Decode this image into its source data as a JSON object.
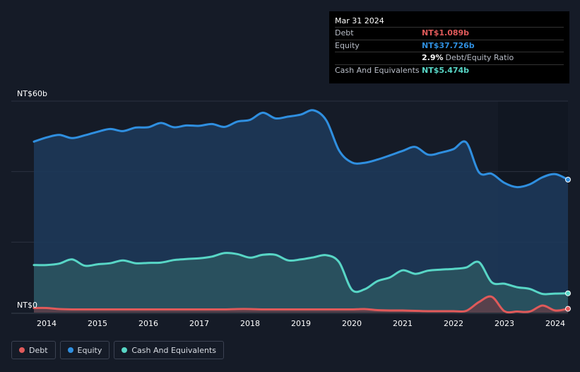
{
  "tooltip": {
    "date": "Mar 31 2024",
    "rows": [
      {
        "label": "Debt",
        "value": "NT$1.089b",
        "color": "#e05a5a"
      },
      {
        "label": "Equity",
        "value": "NT$37.726b",
        "color": "#2f8fe0"
      },
      {
        "label": "",
        "value": "2.9%",
        "suffix": "Debt/Equity Ratio",
        "color": "#ffffff"
      },
      {
        "label": "Cash And Equivalents",
        "value": "NT$5.474b",
        "color": "#58d6c6"
      }
    ]
  },
  "legend": [
    {
      "label": "Debt",
      "color": "#e05a5a"
    },
    {
      "label": "Equity",
      "color": "#2f8fe0"
    },
    {
      "label": "Cash And Equivalents",
      "color": "#58d6c6"
    }
  ],
  "chart_data": {
    "type": "area",
    "ylim": [
      0,
      60
    ],
    "xlim": [
      2013.6,
      2024.25
    ],
    "y_tick_labels": [
      {
        "value": 60,
        "label": "NT$60b"
      },
      {
        "value": 0,
        "label": "NT$0"
      }
    ],
    "x_ticks": [
      2014,
      2015,
      2016,
      2017,
      2018,
      2019,
      2020,
      2021,
      2022,
      2023,
      2024
    ],
    "grid": true,
    "series": [
      {
        "name": "Equity",
        "color": "#2f8fe0",
        "points": [
          [
            2013.75,
            48.5
          ],
          [
            2014.0,
            49.7
          ],
          [
            2014.25,
            50.4
          ],
          [
            2014.5,
            49.5
          ],
          [
            2014.75,
            50.3
          ],
          [
            2015.0,
            51.3
          ],
          [
            2015.25,
            52.1
          ],
          [
            2015.5,
            51.5
          ],
          [
            2015.75,
            52.5
          ],
          [
            2016.0,
            52.6
          ],
          [
            2016.25,
            53.8
          ],
          [
            2016.5,
            52.6
          ],
          [
            2016.75,
            53.1
          ],
          [
            2017.0,
            53.0
          ],
          [
            2017.25,
            53.5
          ],
          [
            2017.5,
            52.7
          ],
          [
            2017.75,
            54.2
          ],
          [
            2018.0,
            54.7
          ],
          [
            2018.25,
            56.7
          ],
          [
            2018.5,
            55.1
          ],
          [
            2018.75,
            55.6
          ],
          [
            2019.0,
            56.2
          ],
          [
            2019.25,
            57.4
          ],
          [
            2019.5,
            54.5
          ],
          [
            2019.75,
            46.0
          ],
          [
            2020.0,
            42.6
          ],
          [
            2020.25,
            42.5
          ],
          [
            2020.5,
            43.4
          ],
          [
            2020.75,
            44.6
          ],
          [
            2021.0,
            45.9
          ],
          [
            2021.25,
            47.0
          ],
          [
            2021.5,
            44.8
          ],
          [
            2021.75,
            45.4
          ],
          [
            2022.0,
            46.4
          ],
          [
            2022.25,
            48.3
          ],
          [
            2022.5,
            39.8
          ],
          [
            2022.75,
            39.4
          ],
          [
            2023.0,
            36.8
          ],
          [
            2023.25,
            35.6
          ],
          [
            2023.5,
            36.4
          ],
          [
            2023.75,
            38.4
          ],
          [
            2024.0,
            39.3
          ],
          [
            2024.25,
            37.726
          ]
        ]
      },
      {
        "name": "Cash And Equivalents",
        "color": "#58d6c6",
        "points": [
          [
            2013.75,
            13.5
          ],
          [
            2014.0,
            13.5
          ],
          [
            2014.25,
            13.9
          ],
          [
            2014.5,
            15.1
          ],
          [
            2014.75,
            13.3
          ],
          [
            2015.0,
            13.7
          ],
          [
            2015.25,
            14.0
          ],
          [
            2015.5,
            14.8
          ],
          [
            2015.75,
            14.0
          ],
          [
            2016.0,
            14.1
          ],
          [
            2016.25,
            14.2
          ],
          [
            2016.5,
            14.9
          ],
          [
            2016.75,
            15.2
          ],
          [
            2017.0,
            15.4
          ],
          [
            2017.25,
            15.9
          ],
          [
            2017.5,
            16.9
          ],
          [
            2017.75,
            16.6
          ],
          [
            2018.0,
            15.6
          ],
          [
            2018.25,
            16.4
          ],
          [
            2018.5,
            16.4
          ],
          [
            2018.75,
            14.8
          ],
          [
            2019.0,
            15.1
          ],
          [
            2019.25,
            15.7
          ],
          [
            2019.5,
            16.3
          ],
          [
            2019.75,
            14.3
          ],
          [
            2020.0,
            6.5
          ],
          [
            2020.25,
            6.6
          ],
          [
            2020.5,
            8.9
          ],
          [
            2020.75,
            10.0
          ],
          [
            2021.0,
            12.0
          ],
          [
            2021.25,
            11.0
          ],
          [
            2021.5,
            11.9
          ],
          [
            2021.75,
            12.2
          ],
          [
            2022.0,
            12.4
          ],
          [
            2022.25,
            12.8
          ],
          [
            2022.5,
            14.3
          ],
          [
            2022.75,
            8.6
          ],
          [
            2023.0,
            8.2
          ],
          [
            2023.25,
            7.2
          ],
          [
            2023.5,
            6.7
          ],
          [
            2023.75,
            5.3
          ],
          [
            2024.0,
            5.4
          ],
          [
            2024.25,
            5.474
          ]
        ]
      },
      {
        "name": "Debt",
        "color": "#e05a5a",
        "points": [
          [
            2013.75,
            1.3
          ],
          [
            2014.0,
            1.3
          ],
          [
            2014.25,
            1.0
          ],
          [
            2014.5,
            0.9
          ],
          [
            2014.75,
            0.9
          ],
          [
            2015.0,
            0.9
          ],
          [
            2015.25,
            0.9
          ],
          [
            2015.5,
            0.9
          ],
          [
            2015.75,
            0.9
          ],
          [
            2016.0,
            0.9
          ],
          [
            2016.25,
            0.9
          ],
          [
            2016.5,
            0.9
          ],
          [
            2016.75,
            0.9
          ],
          [
            2017.0,
            0.9
          ],
          [
            2017.25,
            0.9
          ],
          [
            2017.5,
            0.9
          ],
          [
            2017.75,
            1.0
          ],
          [
            2018.0,
            1.0
          ],
          [
            2018.25,
            0.9
          ],
          [
            2018.5,
            0.9
          ],
          [
            2018.75,
            0.9
          ],
          [
            2019.0,
            0.9
          ],
          [
            2019.25,
            0.9
          ],
          [
            2019.5,
            0.9
          ],
          [
            2019.75,
            0.9
          ],
          [
            2020.0,
            0.9
          ],
          [
            2020.25,
            1.0
          ],
          [
            2020.5,
            0.7
          ],
          [
            2020.75,
            0.6
          ],
          [
            2021.0,
            0.6
          ],
          [
            2021.25,
            0.5
          ],
          [
            2021.5,
            0.4
          ],
          [
            2021.75,
            0.4
          ],
          [
            2022.0,
            0.4
          ],
          [
            2022.25,
            0.5
          ],
          [
            2022.5,
            3.0
          ],
          [
            2022.75,
            4.5
          ],
          [
            2023.0,
            0.4
          ],
          [
            2023.25,
            0.3
          ],
          [
            2023.5,
            0.3
          ],
          [
            2023.75,
            2.0
          ],
          [
            2024.0,
            0.6
          ],
          [
            2024.25,
            1.089
          ]
        ]
      }
    ]
  }
}
